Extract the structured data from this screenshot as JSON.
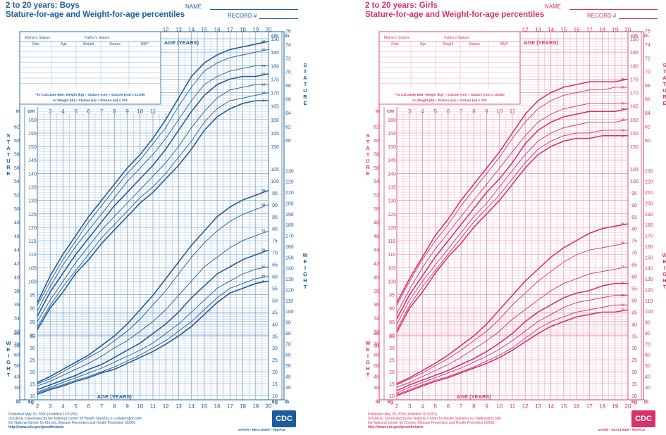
{
  "charts": [
    {
      "id": "boys",
      "color": "#1f5c9b",
      "grid_color": "#7ea4cc",
      "title": "2 to 20 years: Boys",
      "subtitle": "Stature-for-age and Weight-for-age percentiles",
      "name_label": "NAME",
      "record_label": "RECORD #",
      "age_axis_label": "AGE (YEARS)",
      "stature_vertical": "STATURE",
      "weight_vertical": "WEIGHT",
      "unit_cm": "cm",
      "unit_in": "in",
      "unit_kg": "kg",
      "unit_lb": "lb",
      "table_headers": [
        "Mother's Stature",
        "Father's Stature"
      ],
      "table_columns": [
        "Date",
        "Age",
        "Weight",
        "Stature",
        "BMI*"
      ],
      "bmi_note_1": "*To Calculate BMI: Weight (kg) ÷ Stature (cm) ÷ Stature (cm) x 10,000",
      "bmi_note_2": "or Weight (lb) ÷ Stature (in) ÷ Stature (in) x 703",
      "footer_lines": [
        "Published May 30, 2000 (modified 11/21/00).",
        "SOURCE: Developed by the National Center for Health Statistics in collaboration with",
        "the National Center for Chronic Disease Prevention and Health Promotion (2000).",
        "http://www.cdc.gov/growthcharts"
      ],
      "logo_text": "CDC",
      "slogan": "SAFER • HEALTHIER • PEOPLE",
      "chart_data": {
        "type": "line",
        "title": "2 to 20 years: Boys — Stature-for-age and Weight-for-age percentiles",
        "xlabel": "AGE (YEARS)",
        "x": [
          2,
          3,
          4,
          5,
          6,
          7,
          8,
          9,
          10,
          11,
          12,
          13,
          14,
          15,
          16,
          17,
          18,
          19,
          20
        ],
        "xlim": [
          2,
          20
        ],
        "stature_cm_range": [
          75,
          190
        ],
        "weight_kg_range": [
          10,
          105
        ],
        "stature_cm_ticks": [
          80,
          85,
          90,
          95,
          100,
          105,
          110,
          115,
          120,
          125,
          130,
          135,
          140,
          145,
          150,
          155,
          160,
          165,
          170,
          175,
          180,
          185,
          190
        ],
        "stature_in_ticks": [
          30,
          32,
          34,
          36,
          38,
          40,
          42,
          44,
          46,
          48,
          50,
          52,
          54,
          56,
          58,
          60,
          62,
          64,
          66,
          68,
          70,
          72,
          74,
          76
        ],
        "weight_kg_ticks": [
          10,
          15,
          20,
          25,
          30,
          35,
          40,
          45,
          50,
          55,
          60,
          65,
          70,
          75,
          80,
          85,
          90,
          95,
          100,
          105
        ],
        "weight_lb_ticks": [
          30,
          40,
          50,
          60,
          70,
          80,
          90,
          100,
          110,
          120,
          130,
          140,
          150,
          160,
          170,
          180,
          190,
          200,
          210,
          220,
          230
        ],
        "stature_series": [
          {
            "name": "95",
            "values": [
              92,
              102,
              110,
              117,
              124,
              130,
              136,
              142,
              147,
              153,
              160,
              168,
              176,
              181,
              184,
              186,
              187,
              188,
              189
            ]
          },
          {
            "name": "90",
            "values": [
              91,
              100,
              108,
              115,
              122,
              128,
              134,
              140,
              145,
              151,
              157,
              165,
              172,
              178,
              181,
              183,
              184,
              185,
              186
            ]
          },
          {
            "name": "75",
            "values": [
              89,
              98,
              106,
              113,
              119,
              125,
              131,
              137,
              142,
              147,
              153,
              160,
              167,
              173,
              176,
              178,
              179,
              180,
              180
            ]
          },
          {
            "name": "50",
            "values": [
              87,
              96,
              103,
              110,
              116,
              122,
              128,
              133,
              138,
              143,
              149,
              156,
              163,
              169,
              173,
              175,
              176,
              176,
              177
            ]
          },
          {
            "name": "25",
            "values": [
              85,
              93,
              100,
              107,
              113,
              119,
              124,
              129,
              134,
              139,
              144,
              150,
              157,
              163,
              168,
              171,
              172,
              173,
              173
            ]
          },
          {
            "name": "10",
            "values": [
              83,
              91,
              98,
              104,
              110,
              116,
              121,
              126,
              131,
              135,
              140,
              146,
              152,
              159,
              164,
              167,
              168,
              169,
              170
            ]
          },
          {
            "name": "5",
            "values": [
              82,
              90,
              96,
              103,
              108,
              114,
              119,
              124,
              129,
              133,
              138,
              143,
              149,
              156,
              161,
              164,
              166,
              167,
              167
            ]
          }
        ],
        "weight_series": [
          {
            "name": "95",
            "values": [
              15.5,
              18,
              21,
              24,
              27,
              31,
              35,
              40,
              46,
              52,
              59,
              66,
              73,
              79,
              85,
              89,
              92,
              94,
              96
            ]
          },
          {
            "name": "90",
            "values": [
              15,
              17,
              20,
              23,
              26,
              29,
              33,
              37,
              42,
              48,
              54,
              61,
              68,
              74,
              79,
              83,
              86,
              88,
              90
            ]
          },
          {
            "name": "75",
            "values": [
              14,
              16,
              18.5,
              21,
              23.5,
              26.5,
              30,
              33,
              37,
              41,
              46,
              52,
              58,
              64,
              68,
              72,
              75,
              77,
              79
            ]
          },
          {
            "name": "50",
            "values": [
              12.5,
              14.5,
              16.5,
              18.5,
              21,
              23,
              26,
              29,
              32,
              36,
              40,
              45,
              51,
              56,
              61,
              64,
              67,
              69,
              71
            ]
          },
          {
            "name": "25",
            "values": [
              11.5,
              13.5,
              15.5,
              17.5,
              19.5,
              21.5,
              24,
              26.5,
              29,
              32,
              36,
              40,
              45,
              50,
              55,
              58,
              61,
              63,
              64
            ]
          },
          {
            "name": "10",
            "values": [
              11,
              13,
              14.5,
              16.5,
              18,
              20,
              22,
              24.5,
              27,
              30,
              33,
              37,
              41,
              46,
              51,
              55,
              57,
              59,
              60
            ]
          },
          {
            "name": "5",
            "values": [
              10.5,
              12.5,
              14,
              16,
              17.5,
              19.5,
              21,
              23.5,
              26,
              28.5,
              31.5,
              35,
              39,
              44,
              49,
              53,
              55,
              57,
              58
            ]
          }
        ]
      }
    },
    {
      "id": "girls",
      "color": "#d6336c",
      "grid_color": "#ea8fae",
      "title": "2 to 20 years: Girls",
      "subtitle": "Stature-for-age and Weight-for-age percentiles",
      "name_label": "NAME",
      "record_label": "RECORD #",
      "age_axis_label": "AGE (YEARS)",
      "stature_vertical": "STATURE",
      "weight_vertical": "WEIGHT",
      "unit_cm": "cm",
      "unit_in": "in",
      "unit_kg": "kg",
      "unit_lb": "lb",
      "table_headers": [
        "Mother's Stature",
        "Father's Stature"
      ],
      "table_columns": [
        "Date",
        "Age",
        "Weight",
        "Stature",
        "BMI*"
      ],
      "bmi_note_1": "*To Calculate BMI: Weight (kg) ÷ Stature (cm) ÷ Stature (cm) x 10,000",
      "bmi_note_2": "or Weight (lb) ÷ Stature (in) ÷ Stature (in) x 703",
      "footer_lines": [
        "Published May 30, 2000 (modified 11/21/00).",
        "SOURCE: Developed by the National Center for Health Statistics in collaboration with",
        "the National Center for Chronic Disease Prevention and Health Promotion (2000).",
        "http://www.cdc.gov/growthcharts"
      ],
      "logo_text": "CDC",
      "slogan": "SAFER • HEALTHIER • PEOPLE",
      "chart_data": {
        "type": "line",
        "title": "2 to 20 years: Girls — Stature-for-age and Weight-for-age percentiles",
        "xlabel": "AGE (YEARS)",
        "x": [
          2,
          3,
          4,
          5,
          6,
          7,
          8,
          9,
          10,
          11,
          12,
          13,
          14,
          15,
          16,
          17,
          18,
          19,
          20
        ],
        "xlim": [
          2,
          20
        ],
        "stature_cm_range": [
          75,
          190
        ],
        "weight_kg_range": [
          10,
          105
        ],
        "stature_cm_ticks": [
          80,
          85,
          90,
          95,
          100,
          105,
          110,
          115,
          120,
          125,
          130,
          135,
          140,
          145,
          150,
          155,
          160,
          165,
          170,
          175,
          180,
          185,
          190
        ],
        "stature_in_ticks": [
          30,
          32,
          34,
          36,
          38,
          40,
          42,
          44,
          46,
          48,
          50,
          52,
          54,
          56,
          58,
          60,
          62,
          64,
          66,
          68,
          70,
          72,
          74,
          76
        ],
        "weight_kg_ticks": [
          10,
          15,
          20,
          25,
          30,
          35,
          40,
          45,
          50,
          55,
          60,
          65,
          70,
          75,
          80,
          85,
          90,
          95,
          100,
          105
        ],
        "weight_lb_ticks": [
          30,
          40,
          50,
          60,
          70,
          80,
          90,
          100,
          110,
          120,
          130,
          140,
          150,
          160,
          170,
          180,
          190,
          200,
          210,
          220,
          230
        ],
        "stature_series": [
          {
            "name": "95",
            "values": [
              92,
              101,
              109,
              117,
              123,
              130,
              136,
              142,
              148,
              155,
              162,
              167,
              170,
              172,
              173,
              174,
              174,
              174,
              175
            ]
          },
          {
            "name": "90",
            "values": [
              91,
              100,
              108,
              115,
              121,
              128,
              134,
              140,
              146,
              153,
              159,
              164,
              167,
              169,
              170,
              171,
              171,
              172,
              172
            ]
          },
          {
            "name": "75",
            "values": [
              88,
              97,
              105,
              112,
              118,
              124,
              130,
              136,
              142,
              148,
              154,
              159,
              162,
              164,
              165,
              166,
              166,
              166,
              166
            ]
          },
          {
            "name": "50",
            "values": [
              86,
              95,
              102,
              109,
              115,
              121,
              127,
              133,
              138,
              144,
              151,
              156,
              159,
              161,
              162,
              163,
              163,
              163,
              164
            ]
          },
          {
            "name": "25",
            "values": [
              84,
              93,
              100,
              106,
              112,
              118,
              124,
              129,
              135,
              141,
              147,
              152,
              155,
              157,
              158,
              159,
              159,
              159,
              160
            ]
          },
          {
            "name": "10",
            "values": [
              82,
              91,
              98,
              104,
              110,
              116,
              122,
              127,
              132,
              138,
              144,
              149,
              152,
              154,
              155,
              155,
              156,
              156,
              156
            ]
          },
          {
            "name": "5",
            "values": [
              81,
              90,
              96,
              103,
              109,
              114,
              120,
              125,
              130,
              136,
              142,
              147,
              150,
              152,
              153,
              153,
              154,
              154,
              154
            ]
          }
        ],
        "weight_series": [
          {
            "name": "95",
            "values": [
              15,
              17.5,
              20.5,
              23.5,
              27,
              31,
              35,
              40,
              46,
              52,
              58,
              63,
              68,
              72,
              75,
              78,
              80,
              81,
              82
            ]
          },
          {
            "name": "90",
            "values": [
              14.5,
              17,
              19.5,
              22.5,
              25.5,
              29,
              33,
              37,
              42,
              48,
              53,
              58,
              62,
              66,
              69,
              71,
              72,
              73,
              74
            ]
          },
          {
            "name": "75",
            "values": [
              13.5,
              15.5,
              18,
              20.5,
              23,
              26,
              29.5,
              33,
              37,
              42,
              46,
              50,
              54,
              57,
              59,
              61,
              62,
              63,
              64
            ]
          },
          {
            "name": "50",
            "values": [
              12,
              14.5,
              16.5,
              18.5,
              20.5,
              23,
              25.5,
              28.5,
              32,
              36,
              41,
              45,
              48,
              51,
              53,
              54,
              56,
              57,
              57
            ]
          },
          {
            "name": "25",
            "values": [
              11,
              13.5,
              15.5,
              17.5,
              19.5,
              21.5,
              24,
              26.5,
              29.5,
              33,
              37,
              41,
              44,
              47,
              49,
              50,
              51,
              52,
              52
            ]
          },
          {
            "name": "10",
            "values": [
              10.5,
              12.5,
              14.5,
              16.5,
              18,
              20,
              22,
              24.5,
              27,
              30,
              34,
              38,
              41,
              43,
              45,
              46,
              47,
              48,
              48
            ]
          },
          {
            "name": "5",
            "values": [
              10,
              12,
              14,
              16,
              17.5,
              19.5,
              21.5,
              23.5,
              26,
              29,
              32.5,
              36,
              39,
              41,
              43,
              44,
              45,
              45,
              46
            ]
          }
        ]
      }
    }
  ]
}
